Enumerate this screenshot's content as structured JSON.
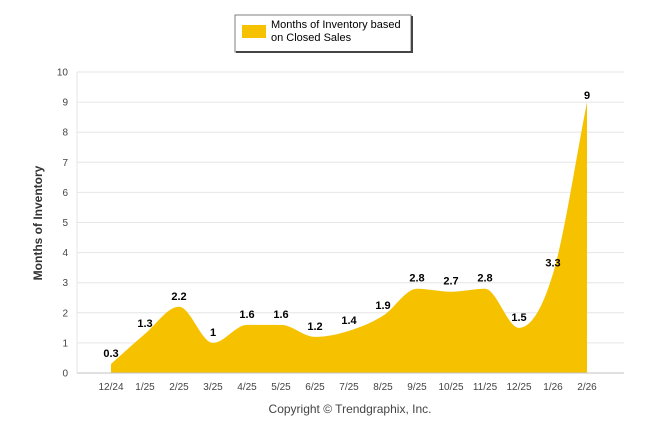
{
  "chart_data": {
    "type": "area",
    "categories": [
      "12/24",
      "1/25",
      "2/25",
      "3/25",
      "4/25",
      "5/25",
      "6/25",
      "7/25",
      "8/25",
      "9/25",
      "10/25",
      "11/25",
      "12/25",
      "1/26",
      "2/26"
    ],
    "series": [
      {
        "name": "Months of Inventory based on Closed Sales",
        "values": [
          0.3,
          1.3,
          2.2,
          1,
          1.6,
          1.6,
          1.2,
          1.4,
          1.9,
          2.8,
          2.7,
          2.8,
          1.5,
          3.3,
          9
        ],
        "labels": [
          "0.3",
          "1.3",
          "2.2",
          "1",
          "1.6",
          "1.6",
          "1.2",
          "1.4",
          "1.9",
          "2.8",
          "2.7",
          "2.8",
          "1.5",
          "3.3",
          "9"
        ],
        "color": "#f6c200"
      }
    ],
    "xlabel": "",
    "ylabel": "Months of Inventory",
    "ylim": [
      0,
      10
    ],
    "yticks": [
      "0",
      "1",
      "2",
      "3",
      "4",
      "5",
      "6",
      "7",
      "8",
      "9",
      "10"
    ],
    "grid": true,
    "legend_position": "top-center",
    "legend_lines": [
      "Months of Inventory based",
      "on Closed Sales"
    ]
  },
  "footer": {
    "copyright": "Copyright © Trendgraphix, Inc."
  },
  "colors": {
    "area": "#f6c200",
    "grid": "#e6e6e6",
    "axis": "#c0c0c0"
  }
}
